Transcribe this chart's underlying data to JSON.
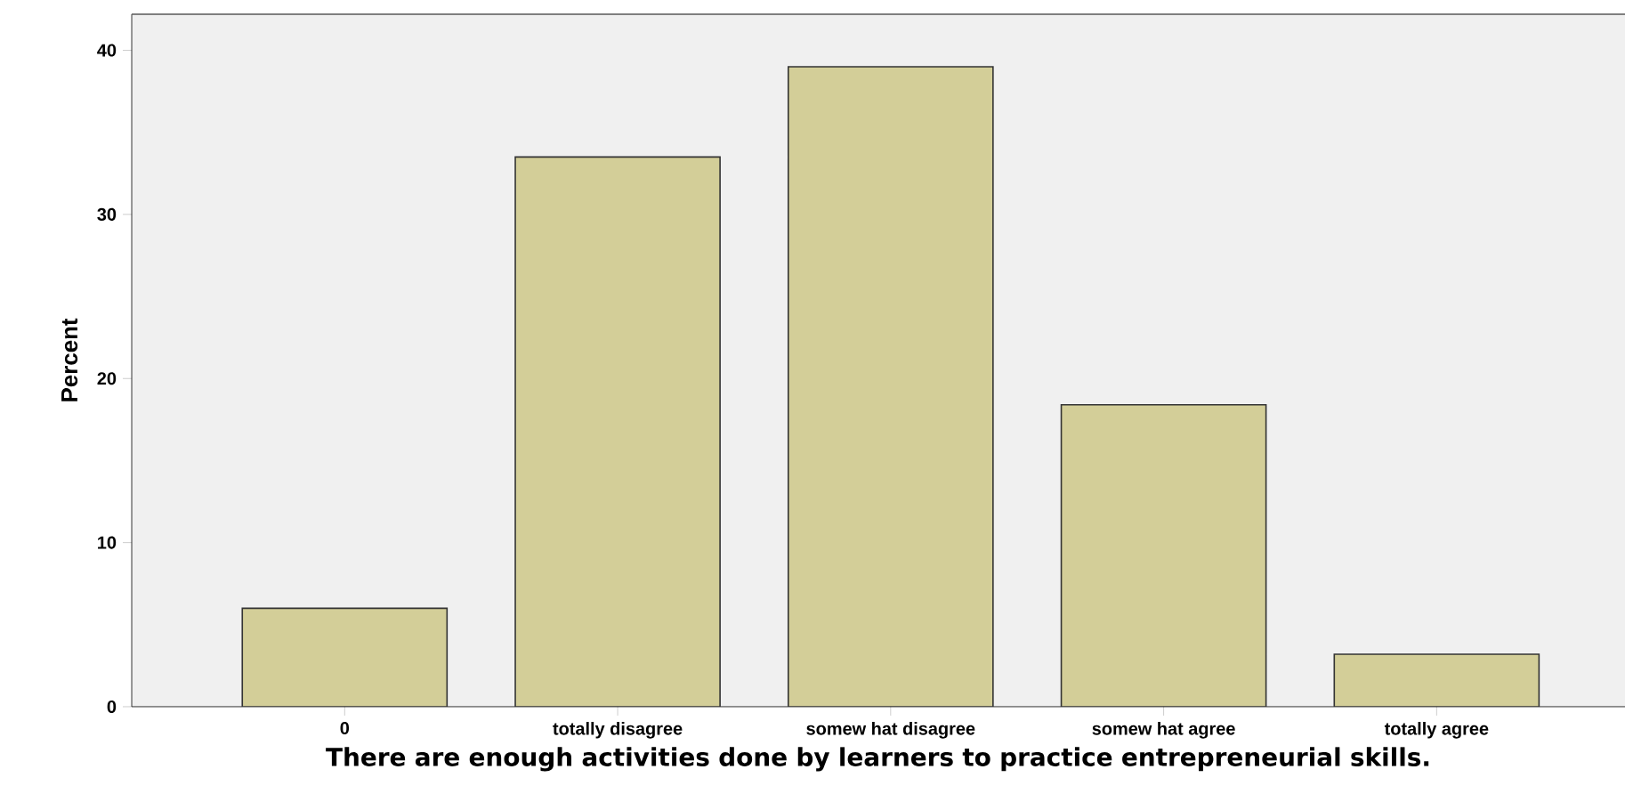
{
  "chart_data": {
    "type": "bar",
    "categories": [
      "0",
      "totally disagree",
      "somew hat disagree",
      "somew hat agree",
      "totally agree"
    ],
    "values": [
      6.0,
      33.5,
      39.0,
      18.4,
      3.2
    ],
    "color": "#d3ce98",
    "xlabel": "There are enough activities done by learners to practice entrepreneurial skills.",
    "ylabel": "Percent",
    "ylim": [
      0,
      42.2
    ],
    "yticks": [
      0,
      10,
      20,
      30,
      40
    ],
    "grid": false
  }
}
